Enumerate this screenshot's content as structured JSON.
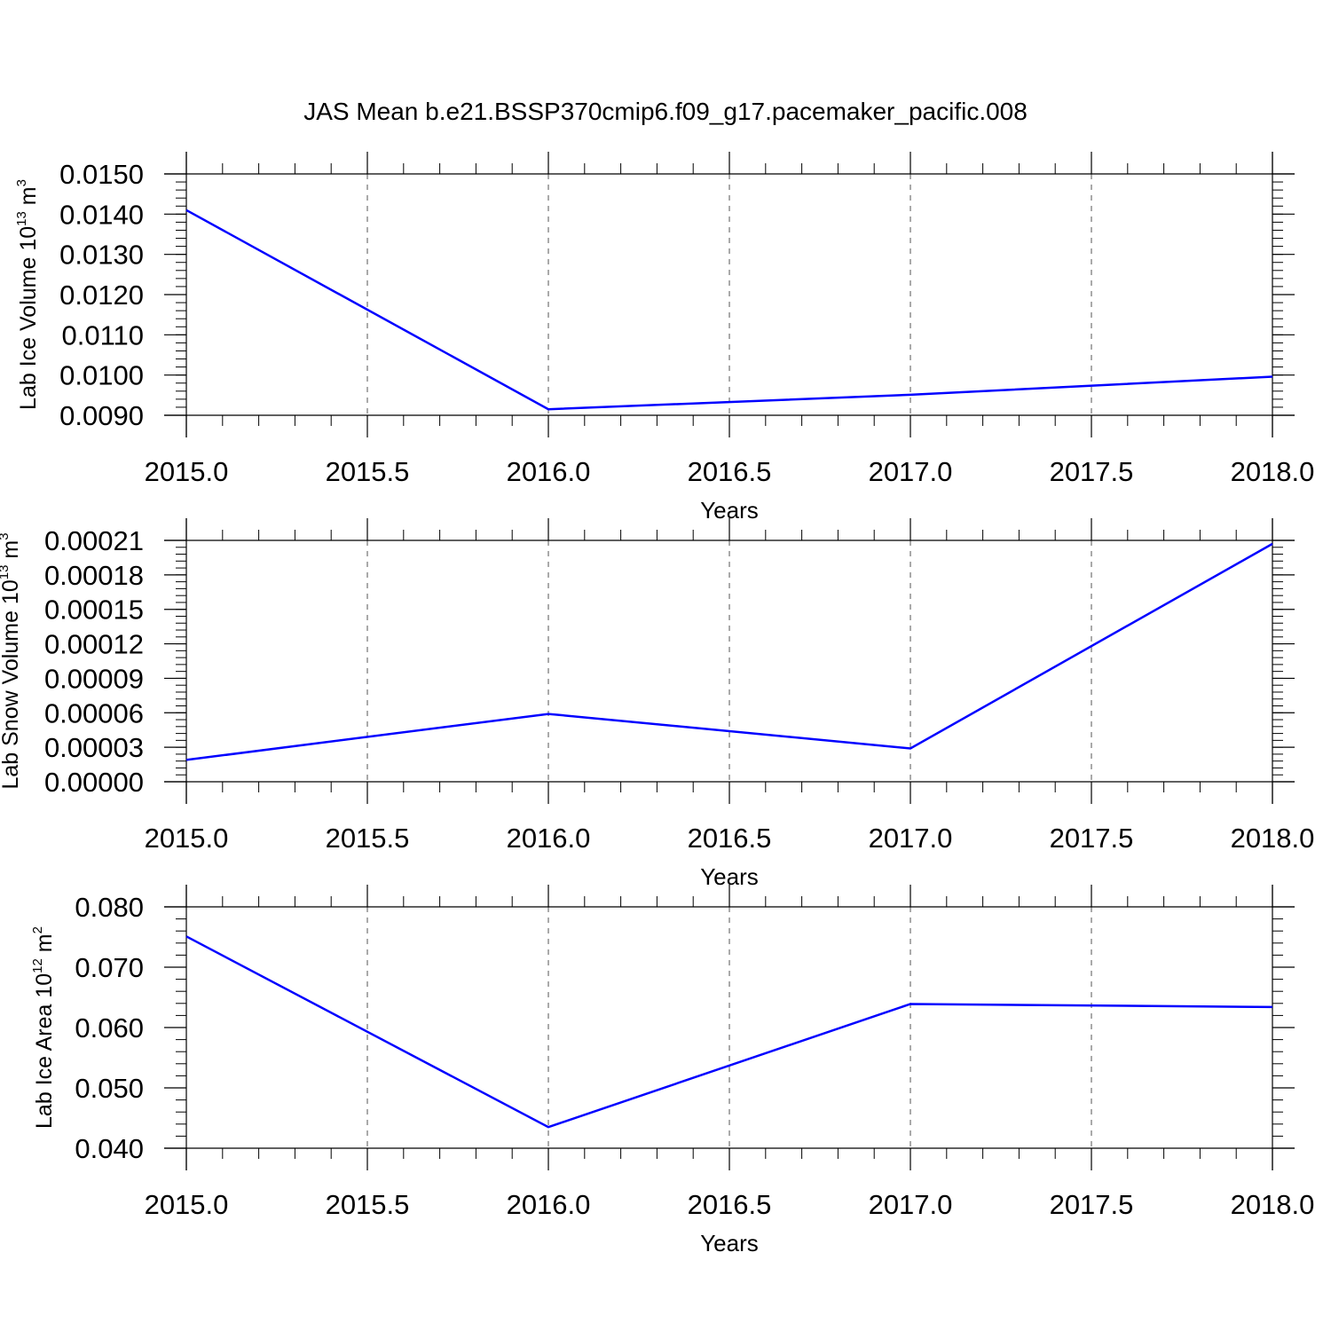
{
  "title": "JAS Mean b.e21.BSSP370cmip6.f09_g17.pacemaker_pacific.008",
  "colors": {
    "line": "#0000ff",
    "axis": "#000000",
    "grid": "#555555"
  },
  "chart_data": [
    {
      "type": "line",
      "title": "",
      "xlabel": "Years",
      "ylabel": {
        "main": "Lab Ice Volume 10",
        "exp": "13",
        "unit": " m",
        "unit_exp": "3"
      },
      "x_ticks": [
        "2015.0",
        "2015.5",
        "2016.0",
        "2016.5",
        "2017.0",
        "2017.5",
        "2018.0"
      ],
      "y_ticks": [
        "0.0090",
        "0.0100",
        "0.0110",
        "0.0120",
        "0.0130",
        "0.0140",
        "0.0150"
      ],
      "xlim": [
        2015.0,
        2018.0
      ],
      "ylim": [
        0.009,
        0.015
      ],
      "grid": "vertical-dashed",
      "series": [
        {
          "x": [
            2015.0,
            2016.0,
            2017.0,
            2018.0
          ],
          "values": [
            0.0141,
            0.00915,
            0.00951,
            0.00996
          ]
        }
      ]
    },
    {
      "type": "line",
      "title": "",
      "xlabel": "Years",
      "ylabel": {
        "main": "Lab Snow Volume 10",
        "exp": "13",
        "unit": " m",
        "unit_exp": "3"
      },
      "x_ticks": [
        "2015.0",
        "2015.5",
        "2016.0",
        "2016.5",
        "2017.0",
        "2017.5",
        "2018.0"
      ],
      "y_ticks": [
        "0.00000",
        "0.00003",
        "0.00006",
        "0.00009",
        "0.00012",
        "0.00015",
        "0.00018",
        "0.00021"
      ],
      "xlim": [
        2015.0,
        2018.0
      ],
      "ylim": [
        0.0,
        0.00021
      ],
      "grid": "vertical-dashed",
      "series": [
        {
          "x": [
            2015.0,
            2016.0,
            2017.0,
            2018.0
          ],
          "values": [
            1.9e-05,
            5.9e-05,
            2.9e-05,
            0.000207
          ]
        }
      ]
    },
    {
      "type": "line",
      "title": "",
      "xlabel": "Years",
      "ylabel": {
        "main": "Lab Ice Area 10",
        "exp": "12",
        "unit": " m",
        "unit_exp": "2"
      },
      "x_ticks": [
        "2015.0",
        "2015.5",
        "2016.0",
        "2016.5",
        "2017.0",
        "2017.5",
        "2018.0"
      ],
      "y_ticks": [
        "0.040",
        "0.050",
        "0.060",
        "0.070",
        "0.080"
      ],
      "xlim": [
        2015.0,
        2018.0
      ],
      "ylim": [
        0.04,
        0.08
      ],
      "grid": "vertical-dashed",
      "series": [
        {
          "x": [
            2015.0,
            2016.0,
            2017.0,
            2018.0
          ],
          "values": [
            0.0751,
            0.0435,
            0.0639,
            0.0634
          ]
        }
      ]
    }
  ]
}
